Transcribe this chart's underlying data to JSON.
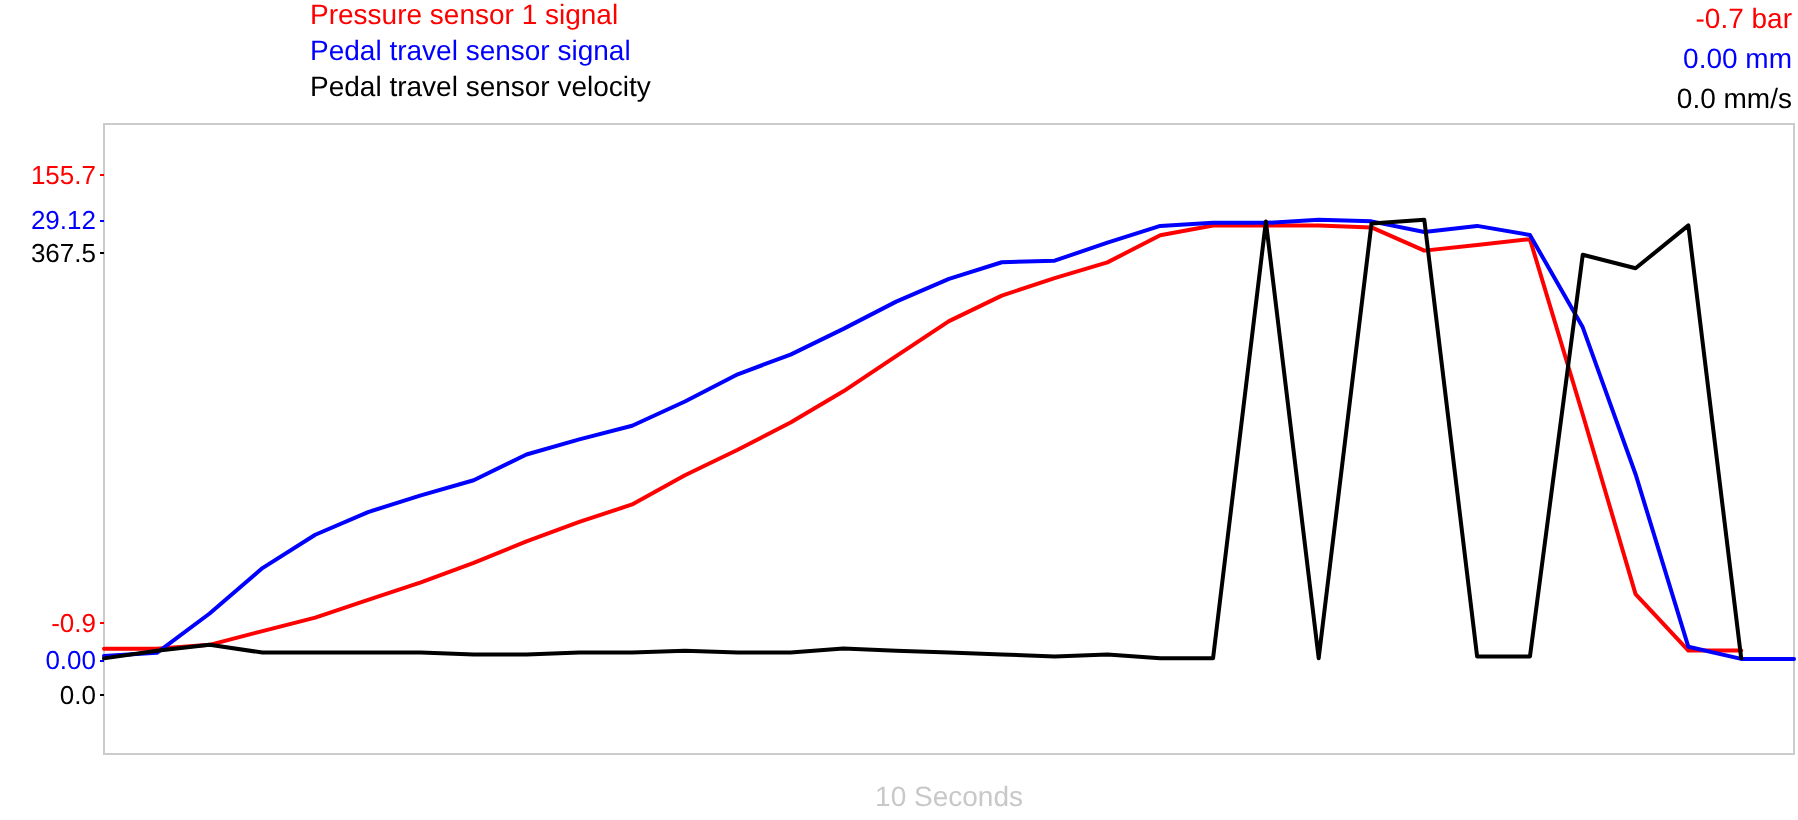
{
  "chart_data": {
    "type": "line",
    "xlabel": "10 Seconds",
    "categories": [
      null,
      null,
      null,
      null,
      null,
      null,
      null,
      null,
      null,
      null,
      null,
      null,
      null,
      null,
      null,
      null,
      null,
      null,
      null,
      null,
      null,
      null,
      null,
      null,
      null,
      null,
      null,
      null,
      null,
      null,
      null,
      null,
      null
    ],
    "series": [
      {
        "name": "Pressure sensor 1 signal",
        "color": "#ff0000",
        "values": [
          -9.75,
          -9.75,
          -8.4,
          -3.6,
          1.1,
          7.3,
          13.4,
          20.2,
          27.7,
          34.5,
          40.6,
          50.8,
          59.7,
          69.2,
          80.1,
          92.4,
          104.6,
          113.5,
          119.6,
          125.1,
          134.6,
          138.0,
          138.0,
          138.0,
          137.3,
          129.2,
          131.2,
          133.2,
          72.0,
          9.3,
          -10.4,
          -10.4,
          null
        ]
      },
      {
        "name": "Pedal travel sensor signal",
        "color": "#0000ff",
        "axis": "y2",
        "values": [
          0.3,
          0.5,
          3.1,
          6.1,
          8.3,
          9.8,
          10.9,
          11.9,
          13.6,
          14.6,
          15.5,
          17.1,
          18.9,
          20.2,
          21.9,
          23.7,
          25.2,
          26.3,
          26.4,
          27.6,
          28.7,
          28.9,
          28.9,
          29.1,
          29.0,
          28.3,
          28.7,
          28.1,
          22.0,
          12.3,
          0.9,
          0.1,
          0.1
        ]
      },
      {
        "name": "Pedal travel sensor velocity",
        "color": "#000000",
        "axis": "y3",
        "values": [
          30.8,
          37.2,
          42.1,
          35.6,
          35.6,
          35.6,
          35.6,
          34.0,
          34.0,
          35.6,
          35.6,
          37.2,
          35.6,
          35.6,
          38.9,
          37.2,
          35.6,
          34.0,
          32.4,
          34.0,
          30.8,
          30.8,
          393.4,
          30.8,
          391.8,
          395.0,
          32.4,
          32.4,
          365.9,
          354.6,
          390.2,
          30.8,
          null
        ]
      }
    ],
    "ylim": [
      -46.5,
      173.4
    ],
    "yticks": [
      -0.9,
      155.7
    ],
    "y2lim": [
      -6.18,
      35.43
    ],
    "y2ticks": [
      {
        "value": 0,
        "label": "0.00"
      },
      29.12
    ],
    "y3lim": [
      -48.6,
      474.4
    ],
    "y3ticks": [
      {
        "value": 0,
        "label": "0.0"
      },
      367.5
    ],
    "annotations": [
      "-0.7 bar",
      "0.00 mm",
      "0.0 mm/s"
    ],
    "legend": "top left",
    "grid": false,
    "marker": "none",
    "line_style": "solid",
    "tick_labels": "y"
  }
}
